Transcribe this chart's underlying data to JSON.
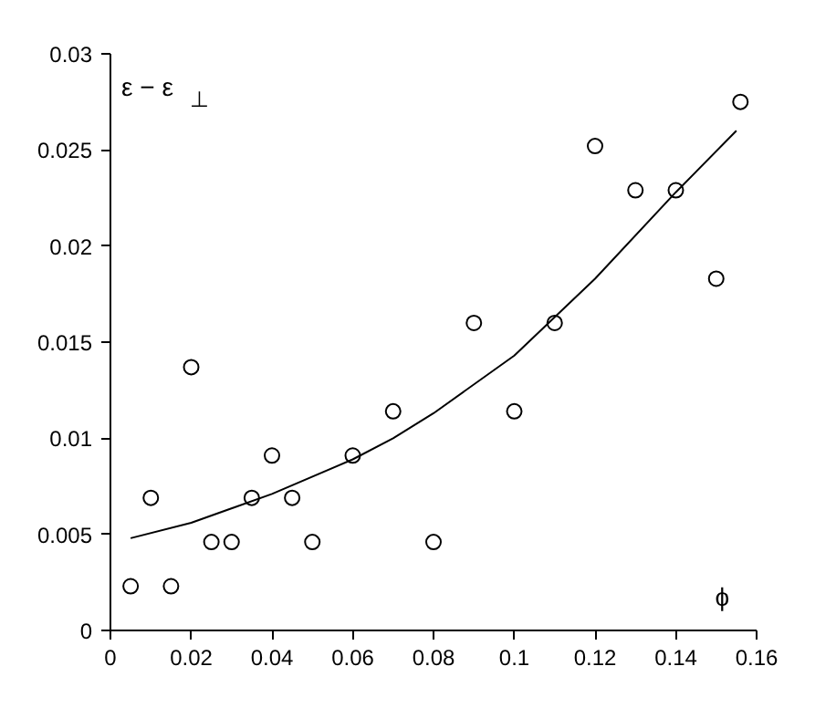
{
  "chart_data": {
    "type": "scatter",
    "xlabel": "ϕ",
    "ylabel": "ε − ε$_{⊥}$",
    "xlim": [
      0,
      0.16
    ],
    "ylim": [
      0,
      0.03
    ],
    "xticks": [
      0,
      0.02,
      0.04,
      0.06,
      0.08,
      0.1,
      0.12,
      0.14,
      0.16
    ],
    "yticks": [
      0,
      0.005,
      0.01,
      0.015,
      0.02,
      0.025,
      0.03
    ],
    "grid": false,
    "series": [
      {
        "color": "#000000",
        "marker": "circle",
        "x": [
          0.005,
          0.01,
          0.015,
          0.02,
          0.025,
          0.03,
          0.035,
          0.04,
          0.045,
          0.05,
          0.06,
          0.07,
          0.08,
          0.09,
          0.1,
          0.11,
          0.12,
          0.13,
          0.14,
          0.15,
          0.156
        ],
        "values": [
          0.0023,
          0.0069,
          0.0023,
          0.0137,
          0.0046,
          0.0046,
          0.0069,
          0.0091,
          0.0069,
          0.0046,
          0.0091,
          0.0114,
          0.0046,
          0.016,
          0.0114,
          0.016,
          0.0252,
          0.0229,
          0.0229,
          0.0183,
          0.0275
        ]
      },
      {
        "type": "line",
        "color": "#000000",
        "line_style": "solid",
        "x": [
          0.005,
          0.02,
          0.04,
          0.06,
          0.07,
          0.08,
          0.1,
          0.12,
          0.14,
          0.155
        ],
        "values": [
          0.0048,
          0.0056,
          0.0071,
          0.0089,
          0.01,
          0.0113,
          0.0143,
          0.0183,
          0.0228,
          0.026
        ]
      }
    ]
  }
}
